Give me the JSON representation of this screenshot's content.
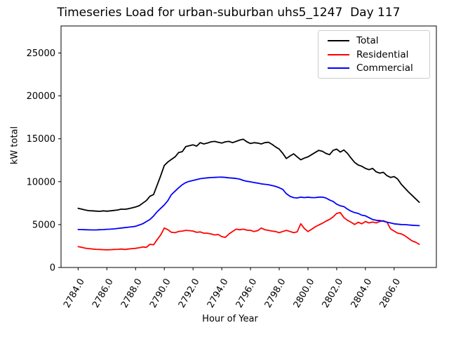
{
  "chart_data": {
    "type": "line",
    "title": "Timeseries Load for urban-suburban uhs5_1247  Day 117",
    "xlabel": "Hour of Year",
    "ylabel": "kW total",
    "xlim": [
      2782.81,
      2808.94
    ],
    "ylim": [
      0,
      28150
    ],
    "grid": false,
    "legend_position": "upper right",
    "x_start": 2784.0,
    "x_step": 0.25,
    "x_ticks": [
      {
        "value": 2784,
        "label": "2784.0"
      },
      {
        "value": 2786,
        "label": "2786.0"
      },
      {
        "value": 2788,
        "label": "2788.0"
      },
      {
        "value": 2790,
        "label": "2790.0"
      },
      {
        "value": 2792,
        "label": "2792.0"
      },
      {
        "value": 2794,
        "label": "2794.0"
      },
      {
        "value": 2796,
        "label": "2796.0"
      },
      {
        "value": 2798,
        "label": "2798.0"
      },
      {
        "value": 2800,
        "label": "2800.0"
      },
      {
        "value": 2802,
        "label": "2802.0"
      },
      {
        "value": 2804,
        "label": "2804.0"
      },
      {
        "value": 2806,
        "label": "2806.0"
      }
    ],
    "y_ticks": [
      {
        "value": 0,
        "label": "0"
      },
      {
        "value": 5000,
        "label": "5000"
      },
      {
        "value": 10000,
        "label": "10000"
      },
      {
        "value": 15000,
        "label": "15000"
      },
      {
        "value": 20000,
        "label": "20000"
      },
      {
        "value": 25000,
        "label": "25000"
      }
    ],
    "series": [
      {
        "name": "Total",
        "color": "#000000",
        "values": [
          6900,
          6800,
          6700,
          6620,
          6600,
          6570,
          6550,
          6600,
          6560,
          6600,
          6650,
          6700,
          6800,
          6780,
          6850,
          6950,
          7050,
          7200,
          7500,
          7800,
          8300,
          8500,
          9600,
          10700,
          11900,
          12300,
          12600,
          12900,
          13400,
          13500,
          14100,
          14200,
          14300,
          14150,
          14550,
          14400,
          14500,
          14650,
          14700,
          14600,
          14500,
          14650,
          14700,
          14550,
          14700,
          14850,
          14950,
          14650,
          14450,
          14550,
          14500,
          14400,
          14550,
          14600,
          14350,
          14050,
          13800,
          13300,
          12700,
          13000,
          13250,
          12900,
          12550,
          12750,
          12900,
          13150,
          13400,
          13650,
          13550,
          13300,
          13150,
          13650,
          13800,
          13450,
          13700,
          13300,
          12750,
          12250,
          11950,
          11800,
          11550,
          11400,
          11550,
          11150,
          11000,
          11100,
          10700,
          10500,
          10600,
          10300,
          9700,
          9250,
          8800,
          8400,
          8000,
          7600
        ]
      },
      {
        "name": "Residential",
        "color": "#ff0000",
        "values": [
          2430,
          2350,
          2250,
          2200,
          2150,
          2120,
          2100,
          2080,
          2060,
          2080,
          2100,
          2120,
          2150,
          2100,
          2150,
          2200,
          2230,
          2300,
          2400,
          2350,
          2700,
          2650,
          3250,
          3800,
          4600,
          4400,
          4100,
          4060,
          4200,
          4250,
          4330,
          4300,
          4250,
          4100,
          4150,
          4000,
          4000,
          3900,
          3800,
          3850,
          3600,
          3510,
          3900,
          4200,
          4470,
          4400,
          4470,
          4350,
          4330,
          4190,
          4300,
          4600,
          4400,
          4330,
          4250,
          4190,
          4060,
          4200,
          4330,
          4200,
          4060,
          4150,
          5100,
          4550,
          4190,
          4450,
          4740,
          4950,
          5150,
          5400,
          5600,
          5900,
          6300,
          6400,
          5830,
          5500,
          5280,
          5010,
          5280,
          5090,
          5360,
          5200,
          5300,
          5200,
          5360,
          5450,
          5280,
          4500,
          4250,
          4000,
          3920,
          3700,
          3400,
          3100,
          2950,
          2700
        ]
      },
      {
        "name": "Commercial",
        "color": "#0000ff",
        "values": [
          4430,
          4420,
          4400,
          4390,
          4380,
          4380,
          4400,
          4420,
          4450,
          4470,
          4500,
          4550,
          4600,
          4650,
          4700,
          4750,
          4800,
          4950,
          5100,
          5350,
          5600,
          6000,
          6500,
          6900,
          7300,
          7800,
          8500,
          8900,
          9300,
          9650,
          9900,
          10050,
          10150,
          10250,
          10350,
          10400,
          10450,
          10480,
          10500,
          10520,
          10530,
          10500,
          10450,
          10420,
          10380,
          10300,
          10150,
          10050,
          9980,
          9900,
          9840,
          9750,
          9700,
          9650,
          9550,
          9450,
          9300,
          9100,
          8600,
          8300,
          8140,
          8100,
          8200,
          8140,
          8200,
          8140,
          8140,
          8200,
          8200,
          8100,
          7870,
          7700,
          7380,
          7190,
          7100,
          6800,
          6560,
          6400,
          6300,
          6100,
          6020,
          5800,
          5600,
          5500,
          5470,
          5400,
          5280,
          5200,
          5090,
          5050,
          5010,
          5000,
          4960,
          4930,
          4900,
          4880
        ]
      }
    ]
  }
}
